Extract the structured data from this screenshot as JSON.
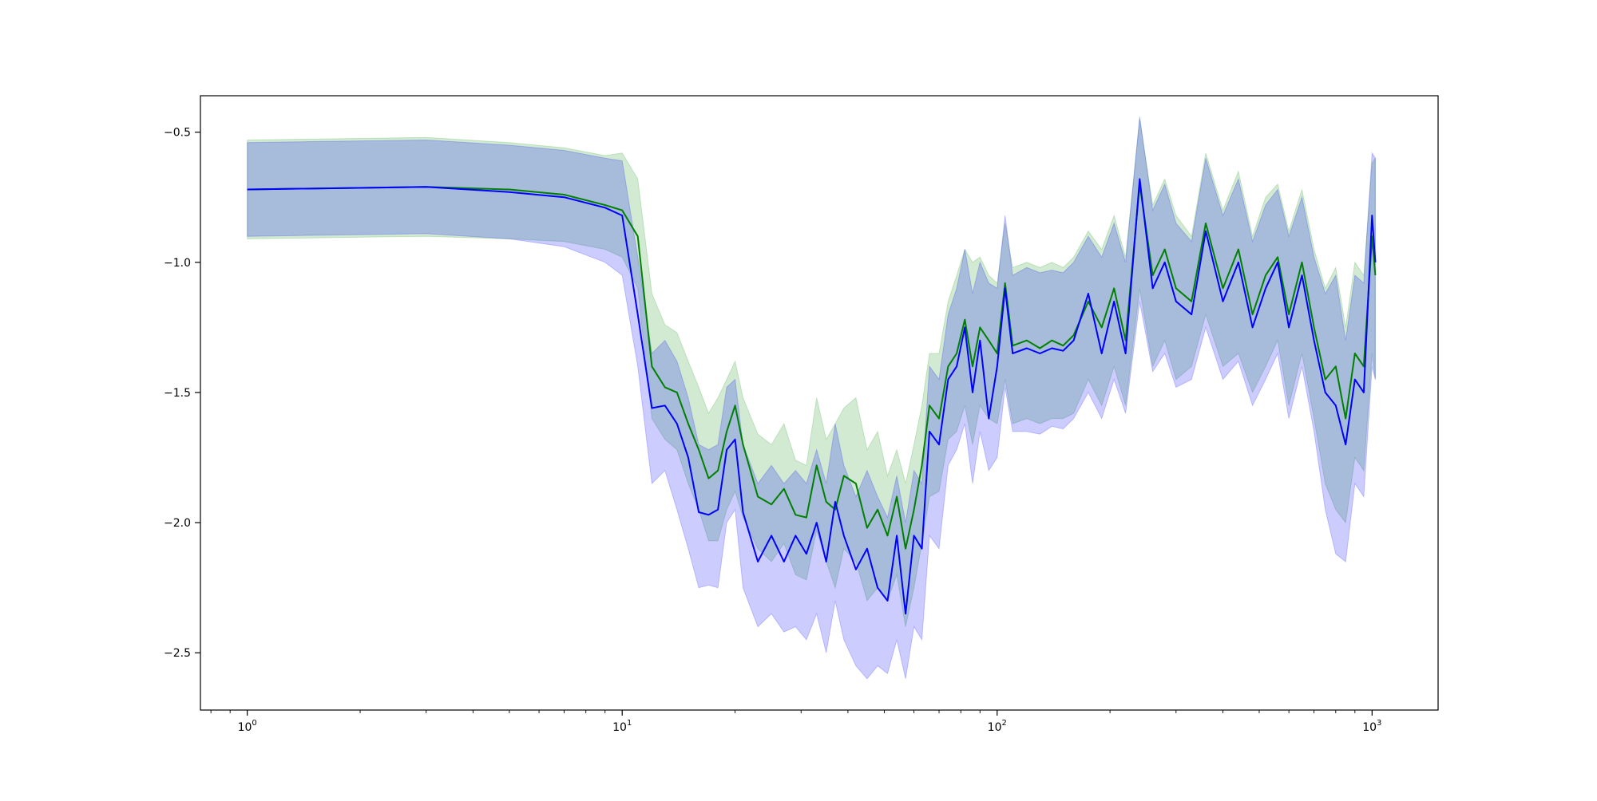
{
  "chart_data": {
    "type": "line",
    "title": "",
    "xlabel": "",
    "ylabel": "",
    "xscale": "log",
    "xlim": [
      0.75,
      1500
    ],
    "ylim": [
      -2.72,
      -0.36
    ],
    "grid": false,
    "legend": "none",
    "x_ticks": [
      {
        "value": 1,
        "base": "10",
        "exp": "0"
      },
      {
        "value": 10,
        "base": "10",
        "exp": "1"
      },
      {
        "value": 100,
        "base": "10",
        "exp": "2"
      },
      {
        "value": 1000,
        "base": "10",
        "exp": "3"
      }
    ],
    "y_ticks": [
      {
        "value": -0.5,
        "label": "−0.5"
      },
      {
        "value": -1.0,
        "label": "−1.0"
      },
      {
        "value": -1.5,
        "label": "−1.5"
      },
      {
        "value": -2.0,
        "label": "−2.0"
      },
      {
        "value": -2.5,
        "label": "−2.5"
      }
    ],
    "series": [
      {
        "color": "#008000",
        "band_color": "#2ca02c",
        "band_opacity": 0.22,
        "points": [
          [
            1,
            -0.72,
            -0.91,
            -0.53
          ],
          [
            3,
            -0.71,
            -0.9,
            -0.52
          ],
          [
            5,
            -0.72,
            -0.91,
            -0.54
          ],
          [
            7,
            -0.74,
            -0.92,
            -0.56
          ],
          [
            9,
            -0.78,
            -0.95,
            -0.59
          ],
          [
            10,
            -0.8,
            -0.98,
            -0.58
          ],
          [
            11,
            -0.9,
            -1.1,
            -0.68
          ],
          [
            12,
            -1.4,
            -1.6,
            -1.12
          ],
          [
            13,
            -1.48,
            -1.68,
            -1.24
          ],
          [
            14,
            -1.5,
            -1.72,
            -1.27
          ],
          [
            15,
            -1.62,
            -1.85,
            -1.38
          ],
          [
            16,
            -1.72,
            -1.95,
            -1.48
          ],
          [
            17,
            -1.83,
            -2.07,
            -1.58
          ],
          [
            18,
            -1.8,
            -2.07,
            -1.52
          ],
          [
            19,
            -1.65,
            -1.95,
            -1.45
          ],
          [
            20,
            -1.55,
            -1.88,
            -1.38
          ],
          [
            21,
            -1.7,
            -1.98,
            -1.52
          ],
          [
            23,
            -1.9,
            -2.1,
            -1.66
          ],
          [
            25,
            -1.93,
            -2.15,
            -1.7
          ],
          [
            27,
            -1.87,
            -2.08,
            -1.62
          ],
          [
            29,
            -1.97,
            -2.2,
            -1.76
          ],
          [
            31,
            -1.98,
            -2.22,
            -1.78
          ],
          [
            33,
            -1.78,
            -2.03,
            -1.52
          ],
          [
            35,
            -1.92,
            -2.15,
            -1.68
          ],
          [
            37,
            -1.95,
            -2.25,
            -1.62
          ],
          [
            39,
            -1.82,
            -2.1,
            -1.56
          ],
          [
            42,
            -1.85,
            -2.15,
            -1.52
          ],
          [
            45,
            -2.02,
            -2.3,
            -1.72
          ],
          [
            48,
            -1.95,
            -2.25,
            -1.65
          ],
          [
            51,
            -2.05,
            -2.3,
            -1.82
          ],
          [
            54,
            -1.9,
            -2.2,
            -1.72
          ],
          [
            57,
            -2.1,
            -2.4,
            -1.85
          ],
          [
            60,
            -1.95,
            -2.25,
            -1.7
          ],
          [
            63,
            -1.78,
            -2.08,
            -1.55
          ],
          [
            66,
            -1.55,
            -1.9,
            -1.35
          ],
          [
            70,
            -1.6,
            -1.88,
            -1.35
          ],
          [
            74,
            -1.4,
            -1.68,
            -1.15
          ],
          [
            78,
            -1.35,
            -1.65,
            -1.05
          ],
          [
            82,
            -1.22,
            -1.55,
            -0.95
          ],
          [
            86,
            -1.4,
            -1.7,
            -1.0
          ],
          [
            90,
            -1.25,
            -1.55,
            -0.98
          ],
          [
            95,
            -1.3,
            -1.6,
            -1.05
          ],
          [
            100,
            -1.35,
            -1.62,
            -1.08
          ],
          [
            105,
            -1.08,
            -1.45,
            -0.85
          ],
          [
            110,
            -1.32,
            -1.62,
            -1.02
          ],
          [
            120,
            -1.3,
            -1.6,
            -1.0
          ],
          [
            130,
            -1.33,
            -1.62,
            -1.02
          ],
          [
            140,
            -1.3,
            -1.6,
            -1.0
          ],
          [
            150,
            -1.32,
            -1.6,
            -1.02
          ],
          [
            160,
            -1.28,
            -1.58,
            -0.98
          ],
          [
            175,
            -1.15,
            -1.45,
            -0.88
          ],
          [
            190,
            -1.25,
            -1.55,
            -0.95
          ],
          [
            205,
            -1.1,
            -1.4,
            -0.82
          ],
          [
            220,
            -1.3,
            -1.55,
            -0.98
          ],
          [
            240,
            -0.7,
            -1.1,
            -0.45
          ],
          [
            260,
            -1.05,
            -1.4,
            -0.78
          ],
          [
            280,
            -0.95,
            -1.3,
            -0.68
          ],
          [
            300,
            -1.1,
            -1.45,
            -0.82
          ],
          [
            330,
            -1.15,
            -1.4,
            -0.9
          ],
          [
            360,
            -0.85,
            -1.2,
            -0.58
          ],
          [
            400,
            -1.1,
            -1.4,
            -0.8
          ],
          [
            440,
            -0.95,
            -1.35,
            -0.65
          ],
          [
            480,
            -1.2,
            -1.5,
            -0.9
          ],
          [
            520,
            -1.05,
            -1.4,
            -0.75
          ],
          [
            560,
            -0.98,
            -1.3,
            -0.7
          ],
          [
            600,
            -1.2,
            -1.55,
            -0.88
          ],
          [
            650,
            -1.0,
            -1.35,
            -0.72
          ],
          [
            700,
            -1.25,
            -1.6,
            -0.95
          ],
          [
            750,
            -1.45,
            -1.85,
            -1.1
          ],
          [
            800,
            -1.4,
            -1.95,
            -1.02
          ],
          [
            850,
            -1.6,
            -2.0,
            -1.25
          ],
          [
            900,
            -1.35,
            -1.75,
            -1.0
          ],
          [
            950,
            -1.4,
            -1.8,
            -1.05
          ],
          [
            1000,
            -0.9,
            -1.35,
            -0.62
          ],
          [
            1020,
            -1.05,
            -1.45,
            -0.6
          ]
        ]
      },
      {
        "color": "#0000ff",
        "band_color": "#0000ff",
        "band_opacity": 0.2,
        "points": [
          [
            1,
            -0.72,
            -0.9,
            -0.54
          ],
          [
            3,
            -0.71,
            -0.89,
            -0.53
          ],
          [
            5,
            -0.73,
            -0.91,
            -0.55
          ],
          [
            7,
            -0.75,
            -0.94,
            -0.57
          ],
          [
            9,
            -0.79,
            -1.0,
            -0.6
          ],
          [
            10,
            -0.82,
            -1.05,
            -0.61
          ],
          [
            11,
            -1.2,
            -1.4,
            -0.98
          ],
          [
            12,
            -1.56,
            -1.85,
            -1.35
          ],
          [
            13,
            -1.55,
            -1.8,
            -1.3
          ],
          [
            14,
            -1.62,
            -1.95,
            -1.38
          ],
          [
            15,
            -1.75,
            -2.1,
            -1.52
          ],
          [
            16,
            -1.96,
            -2.25,
            -1.7
          ],
          [
            17,
            -1.97,
            -2.24,
            -1.72
          ],
          [
            18,
            -1.95,
            -2.25,
            -1.7
          ],
          [
            19,
            -1.72,
            -2.0,
            -1.48
          ],
          [
            20,
            -1.68,
            -1.95,
            -1.45
          ],
          [
            21,
            -1.96,
            -2.25,
            -1.7
          ],
          [
            23,
            -2.15,
            -2.4,
            -1.85
          ],
          [
            25,
            -2.05,
            -2.35,
            -1.78
          ],
          [
            27,
            -2.15,
            -2.42,
            -1.85
          ],
          [
            29,
            -2.05,
            -2.4,
            -1.8
          ],
          [
            31,
            -2.12,
            -2.45,
            -1.85
          ],
          [
            33,
            -2.0,
            -2.35,
            -1.72
          ],
          [
            35,
            -2.15,
            -2.5,
            -1.85
          ],
          [
            37,
            -1.92,
            -2.3,
            -1.62
          ],
          [
            39,
            -2.05,
            -2.45,
            -1.78
          ],
          [
            42,
            -2.18,
            -2.55,
            -1.9
          ],
          [
            45,
            -2.1,
            -2.6,
            -1.8
          ],
          [
            48,
            -2.25,
            -2.55,
            -1.9
          ],
          [
            51,
            -2.3,
            -2.58,
            -1.98
          ],
          [
            54,
            -2.05,
            -2.45,
            -1.82
          ],
          [
            57,
            -2.35,
            -2.6,
            -2.0
          ],
          [
            60,
            -2.05,
            -2.4,
            -1.8
          ],
          [
            63,
            -2.1,
            -2.45,
            -1.85
          ],
          [
            66,
            -1.65,
            -2.05,
            -1.4
          ],
          [
            70,
            -1.7,
            -2.1,
            -1.45
          ],
          [
            74,
            -1.45,
            -1.78,
            -1.2
          ],
          [
            78,
            -1.4,
            -1.72,
            -1.1
          ],
          [
            82,
            -1.25,
            -1.62,
            -0.95
          ],
          [
            86,
            -1.5,
            -1.85,
            -1.12
          ],
          [
            90,
            -1.3,
            -1.65,
            -1.0
          ],
          [
            95,
            -1.6,
            -1.8,
            -1.08
          ],
          [
            100,
            -1.4,
            -1.75,
            -1.1
          ],
          [
            105,
            -1.1,
            -1.48,
            -0.82
          ],
          [
            110,
            -1.35,
            -1.65,
            -1.05
          ],
          [
            120,
            -1.33,
            -1.65,
            -1.02
          ],
          [
            130,
            -1.35,
            -1.66,
            -1.04
          ],
          [
            140,
            -1.33,
            -1.63,
            -1.03
          ],
          [
            150,
            -1.34,
            -1.64,
            -1.04
          ],
          [
            160,
            -1.3,
            -1.6,
            -1.0
          ],
          [
            175,
            -1.12,
            -1.5,
            -0.9
          ],
          [
            190,
            -1.35,
            -1.6,
            -0.98
          ],
          [
            205,
            -1.15,
            -1.45,
            -0.85
          ],
          [
            220,
            -1.35,
            -1.58,
            -1.0
          ],
          [
            240,
            -0.68,
            -1.15,
            -0.44
          ],
          [
            260,
            -1.1,
            -1.42,
            -0.8
          ],
          [
            280,
            -1.0,
            -1.35,
            -0.7
          ],
          [
            300,
            -1.15,
            -1.48,
            -0.85
          ],
          [
            330,
            -1.2,
            -1.45,
            -0.92
          ],
          [
            360,
            -0.88,
            -1.25,
            -0.6
          ],
          [
            400,
            -1.15,
            -1.45,
            -0.82
          ],
          [
            440,
            -1.0,
            -1.38,
            -0.68
          ],
          [
            480,
            -1.25,
            -1.55,
            -0.92
          ],
          [
            520,
            -1.1,
            -1.45,
            -0.78
          ],
          [
            560,
            -1.0,
            -1.35,
            -0.72
          ],
          [
            600,
            -1.25,
            -1.6,
            -0.9
          ],
          [
            650,
            -1.05,
            -1.4,
            -0.75
          ],
          [
            700,
            -1.3,
            -1.65,
            -0.98
          ],
          [
            750,
            -1.5,
            -1.95,
            -1.12
          ],
          [
            800,
            -1.55,
            -2.12,
            -1.05
          ],
          [
            850,
            -1.7,
            -2.15,
            -1.3
          ],
          [
            900,
            -1.45,
            -1.85,
            -1.05
          ],
          [
            950,
            -1.5,
            -1.9,
            -1.08
          ],
          [
            1000,
            -0.82,
            -1.4,
            -0.58
          ],
          [
            1020,
            -1.0,
            -1.45,
            -0.6
          ]
        ]
      }
    ]
  }
}
